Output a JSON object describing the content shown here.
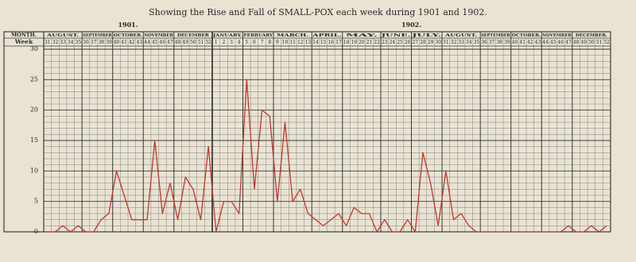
{
  "chart_data": {
    "type": "line",
    "title": "Showing the Rise and Fall of SMALL-POX each week during 1901 and 1902.",
    "row_labels": [
      "MONTH.",
      "Week"
    ],
    "years": [
      {
        "label": "1901.",
        "span": 22
      },
      {
        "label": "1902.",
        "span": 52
      }
    ],
    "months": [
      {
        "label": "AUGUST.",
        "span": 5
      },
      {
        "label": "SEPTEMBER",
        "span": 4
      },
      {
        "label": "OCTOBER.",
        "span": 4
      },
      {
        "label": "NOVEMBER",
        "span": 4
      },
      {
        "label": "DECEMBER",
        "span": 5
      },
      {
        "label": "JANUARY.",
        "span": 4
      },
      {
        "label": "FEBRUARY",
        "span": 4
      },
      {
        "label": "MARCH.",
        "span": 5
      },
      {
        "label": "APRIL.",
        "span": 4
      },
      {
        "label": "MAY.",
        "span": 5
      },
      {
        "label": "JUNE.",
        "span": 4
      },
      {
        "label": "JULY.",
        "span": 4
      },
      {
        "label": "AUGUST.",
        "span": 5
      },
      {
        "label": "SEPTEMBER",
        "span": 4
      },
      {
        "label": "OCTOBER.",
        "span": 4
      },
      {
        "label": "NOVEMBER",
        "span": 4
      },
      {
        "label": "DECEMBER.",
        "span": 5
      }
    ],
    "categories": [
      31,
      32,
      33,
      34,
      35,
      36,
      37,
      38,
      39,
      40,
      41,
      42,
      43,
      44,
      45,
      46,
      47,
      48,
      49,
      50,
      51,
      52,
      1,
      2,
      3,
      4,
      5,
      6,
      7,
      8,
      9,
      10,
      11,
      12,
      13,
      14,
      15,
      16,
      17,
      18,
      19,
      20,
      21,
      22,
      23,
      24,
      25,
      26,
      27,
      28,
      29,
      30,
      31,
      32,
      33,
      34,
      35,
      36,
      37,
      38,
      39,
      40,
      41,
      42,
      43,
      44,
      45,
      46,
      47,
      48,
      49,
      50,
      51,
      52
    ],
    "values": [
      0,
      0,
      1,
      0,
      1,
      0,
      0,
      2,
      3,
      10,
      6,
      2,
      2,
      2,
      15,
      3,
      8,
      2,
      9,
      7,
      2,
      14,
      0,
      5,
      5,
      3,
      25,
      7,
      20,
      19,
      5,
      18,
      5,
      7,
      3,
      2,
      1,
      2,
      3,
      1,
      4,
      3,
      3,
      0,
      2,
      0,
      0,
      2,
      0,
      13,
      8,
      1,
      10,
      2,
      3,
      1,
      0,
      0,
      0,
      0,
      0,
      0,
      0,
      0,
      0,
      0,
      0,
      0,
      1,
      0,
      0,
      1,
      0,
      1
    ],
    "color": "#c0392b",
    "ylim": [
      0,
      30
    ],
    "yticks": [
      0,
      5,
      10,
      15,
      20,
      25,
      30
    ],
    "grid": true
  }
}
